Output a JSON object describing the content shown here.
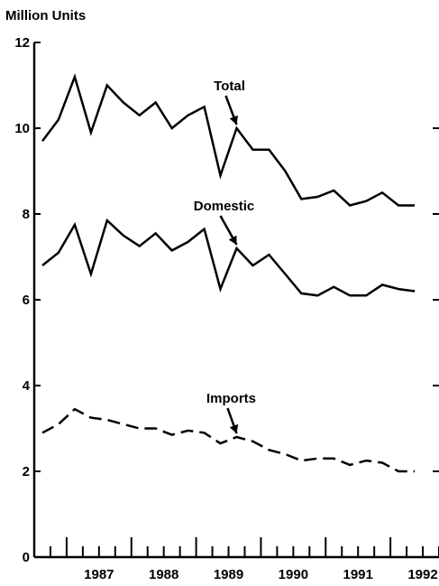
{
  "chart_data": {
    "type": "line",
    "ylabel": "Million Units",
    "ylim": [
      0,
      12
    ],
    "yticks": [
      0,
      2,
      4,
      6,
      8,
      10,
      12
    ],
    "xlim": [
      1986.5,
      1992.75
    ],
    "year_labels": [
      "1987",
      "1988",
      "1989",
      "1990",
      "1991",
      "1992"
    ],
    "grid": false,
    "x": [
      1986.625,
      1986.875,
      1987.125,
      1987.375,
      1987.625,
      1987.875,
      1988.125,
      1988.375,
      1988.625,
      1988.875,
      1989.125,
      1989.375,
      1989.625,
      1989.875,
      1990.125,
      1990.375,
      1990.625,
      1990.875,
      1991.125,
      1991.375,
      1991.625,
      1991.875,
      1992.125,
      1992.375
    ],
    "series": [
      {
        "name": "Total",
        "style": "solid",
        "values": [
          9.7,
          10.2,
          11.2,
          9.9,
          11.0,
          10.6,
          10.3,
          10.6,
          10.0,
          10.3,
          10.5,
          8.9,
          10.0,
          9.5,
          9.5,
          9.0,
          8.35,
          8.4,
          8.55,
          8.2,
          8.3,
          8.5,
          8.2,
          8.2
        ]
      },
      {
        "name": "Domestic",
        "style": "solid",
        "values": [
          6.8,
          7.1,
          7.75,
          6.6,
          7.85,
          7.5,
          7.25,
          7.55,
          7.15,
          7.35,
          7.65,
          6.25,
          7.2,
          6.8,
          7.05,
          6.6,
          6.15,
          6.1,
          6.3,
          6.1,
          6.1,
          6.35,
          6.25,
          6.2
        ]
      },
      {
        "name": "Imports",
        "style": "dashed",
        "values": [
          2.9,
          3.1,
          3.45,
          3.25,
          3.2,
          3.1,
          3.0,
          3.0,
          2.85,
          2.95,
          2.9,
          2.65,
          2.8,
          2.7,
          2.5,
          2.4,
          2.25,
          2.3,
          2.3,
          2.15,
          2.25,
          2.2,
          2.0,
          2.0
        ]
      }
    ],
    "annotations": [
      {
        "text": "Total",
        "series": 0,
        "point": 12
      },
      {
        "text": "Domestic",
        "series": 1,
        "point": 12
      },
      {
        "text": "Imports",
        "series": 2,
        "point": 12
      }
    ],
    "colors": {
      "line": "#000000",
      "axis": "#000000",
      "background": "#ffffff"
    }
  }
}
